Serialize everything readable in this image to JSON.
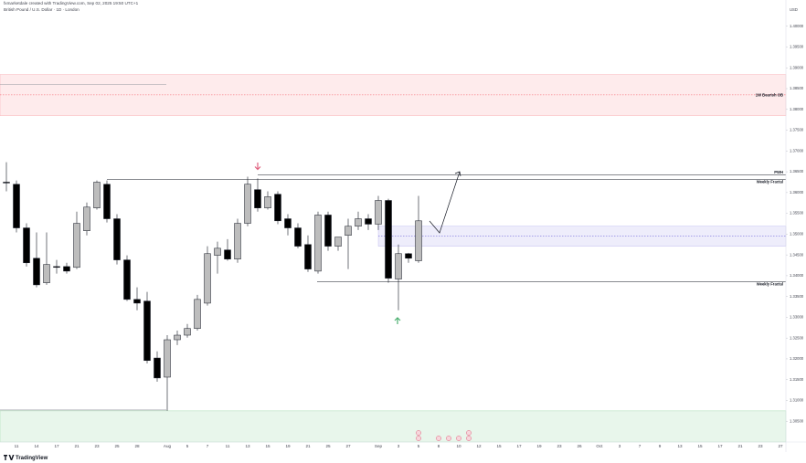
{
  "header": {
    "author_line": "fxmarketdale created with TradingView.com, Sep 02, 2025 19:50 UTC+1",
    "symbol_line": "British Pound / U.S. Dollar · 1D · London"
  },
  "chart_data": {
    "type": "candlestick",
    "currency": "USD",
    "categories": [
      null,
      "11",
      null,
      "14",
      null,
      "17",
      null,
      "21",
      null,
      "23",
      null,
      "25",
      null,
      "28",
      null,
      null,
      "Aug",
      null,
      "5",
      null,
      "7",
      null,
      "11",
      null,
      "13",
      null,
      "15",
      null,
      "19",
      null,
      "21",
      null,
      "25",
      null,
      "27",
      null,
      null,
      "Sep",
      null,
      "3",
      null,
      "5",
      null,
      "8",
      null,
      "10",
      null,
      "12",
      null,
      "15",
      null,
      "17",
      null,
      "19",
      null,
      "23",
      null,
      "26",
      null,
      "Oct",
      null,
      "3",
      null,
      "7",
      null,
      "9",
      null,
      "13",
      null,
      "15",
      null,
      "17",
      null,
      "21",
      null,
      "23",
      null,
      "27"
    ],
    "open": [
      1.3625,
      1.362,
      1.3515,
      1.3442,
      1.3383,
      1.3422,
      1.3422,
      1.342,
      1.3508,
      1.3563,
      1.362,
      1.3537,
      1.3438,
      1.3343,
      1.3339,
      1.3202,
      1.3156,
      1.3246,
      1.3257,
      1.3273,
      1.3334,
      1.3449,
      1.3462,
      1.344,
      1.3526,
      1.3607,
      1.3563,
      1.3596,
      1.3537,
      1.3515,
      1.3475,
      1.3411,
      1.3546,
      1.3471,
      1.3497,
      1.3519,
      1.3537,
      1.3524,
      1.3581,
      1.3392,
      1.3453,
      1.3436,
      null,
      null,
      null,
      null,
      null,
      null,
      null,
      null,
      null,
      null,
      null,
      null,
      null,
      null,
      null,
      null,
      null,
      null,
      null,
      null,
      null,
      null,
      null,
      null,
      null,
      null,
      null,
      null,
      null,
      null,
      null,
      null,
      null,
      null,
      null,
      null
    ],
    "high": [
      1.3673,
      1.3629,
      1.3526,
      1.3504,
      1.3504,
      1.3438,
      1.3431,
      1.3554,
      1.3576,
      1.3629,
      1.3629,
      1.3548,
      1.3449,
      1.3372,
      1.3361,
      1.3218,
      1.3257,
      1.3268,
      1.3284,
      1.3354,
      1.3471,
      1.3482,
      1.3488,
      1.3537,
      1.3638,
      1.3634,
      1.3603,
      1.3603,
      1.3548,
      1.3526,
      1.3497,
      1.3554,
      1.3554,
      1.3488,
      1.3537,
      1.3554,
      1.3548,
      1.3592,
      1.3585,
      1.3475,
      1.3455,
      1.3592,
      null,
      null,
      null,
      null,
      null,
      null,
      null,
      null,
      null,
      null,
      null,
      null,
      null,
      null,
      null,
      null,
      null,
      null,
      null,
      null,
      null,
      null,
      null,
      null,
      null,
      null,
      null,
      null,
      null,
      null,
      null,
      null,
      null,
      null,
      null,
      null
    ],
    "low": [
      1.3603,
      1.3504,
      1.3422,
      1.3372,
      1.3378,
      1.3405,
      1.3405,
      1.3416,
      1.3497,
      1.3559,
      1.3528,
      1.3427,
      1.3339,
      1.3317,
      1.3189,
      1.3145,
      1.3075,
      1.3233,
      1.3251,
      1.3268,
      1.3328,
      1.3405,
      1.3436,
      1.3431,
      1.3519,
      1.3554,
      1.3559,
      1.3524,
      1.3497,
      1.3466,
      1.3409,
      1.3405,
      1.346,
      1.346,
      1.3416,
      1.351,
      1.351,
      1.351,
      1.3383,
      1.3317,
      1.3431,
      1.3431,
      null,
      null,
      null,
      null,
      null,
      null,
      null,
      null,
      null,
      null,
      null,
      null,
      null,
      null,
      null,
      null,
      null,
      null,
      null,
      null,
      null,
      null,
      null,
      null,
      null,
      null,
      null,
      null,
      null,
      null,
      null,
      null,
      null,
      null,
      null,
      null
    ],
    "close": [
      1.3623,
      1.3515,
      1.3431,
      1.3378,
      1.3427,
      1.342,
      1.3411,
      1.3526,
      1.3565,
      1.3625,
      1.3537,
      1.3438,
      1.3343,
      1.3334,
      1.3196,
      1.3154,
      1.3246,
      1.3257,
      1.3273,
      1.3343,
      1.3453,
      1.3466,
      1.344,
      1.3526,
      1.362,
      1.3563,
      1.359,
      1.3532,
      1.3515,
      1.3471,
      1.3416,
      1.3546,
      1.3471,
      1.3493,
      1.3519,
      1.3537,
      1.3524,
      1.3581,
      1.3394,
      1.3453,
      1.3442,
      1.3532,
      null,
      null,
      null,
      null,
      null,
      null,
      null,
      null,
      null,
      null,
      null,
      null,
      null,
      null,
      null,
      null,
      null,
      null,
      null,
      null,
      null,
      null,
      null,
      null,
      null,
      null,
      null,
      null,
      null,
      null,
      null,
      null,
      null,
      null,
      null,
      null
    ],
    "up_color": "#bdbdbd",
    "down_color": "#000000",
    "grid": false,
    "ylim": [
      1.3,
      1.405
    ],
    "yticks": [
      {
        "value": 1.305,
        "label": "1.30500"
      },
      {
        "value": 1.31,
        "label": "1.31000"
      },
      {
        "value": 1.315,
        "label": "1.31500"
      },
      {
        "value": 1.32,
        "label": "1.32000"
      },
      {
        "value": 1.325,
        "label": "1.32500"
      },
      {
        "value": 1.33,
        "label": "1.33000"
      },
      {
        "value": 1.335,
        "label": "1.33500"
      },
      {
        "value": 1.34,
        "label": "1.34000"
      },
      {
        "value": 1.345,
        "label": "1.34500"
      },
      {
        "value": 1.35,
        "label": "1.35000"
      },
      {
        "value": 1.355,
        "label": "1.35500"
      },
      {
        "value": 1.36,
        "label": "1.36000"
      },
      {
        "value": 1.365,
        "label": "1.36500"
      },
      {
        "value": 1.37,
        "label": "1.37000"
      },
      {
        "value": 1.375,
        "label": "1.37500"
      },
      {
        "value": 1.38,
        "label": "1.38000"
      },
      {
        "value": 1.385,
        "label": "1.38500"
      },
      {
        "value": 1.39,
        "label": "1.39000"
      },
      {
        "value": 1.395,
        "label": "1.39500"
      },
      {
        "value": 1.4,
        "label": "1.40000"
      }
    ],
    "zones": [
      {
        "label": "1W Bearish OB",
        "top": 1.3884,
        "bottom": 1.3785,
        "mid": 1.3835,
        "color": "#f23645"
      },
      {
        "top": 1.3519,
        "bottom": 1.3471,
        "mid": 1.3495,
        "color": "#5b4fd6"
      },
      {
        "top": 1.3075,
        "bottom": 1.3,
        "color": "#22ab3c"
      }
    ],
    "levels": [
      {
        "label": "PWH",
        "value": 1.3642
      },
      {
        "label": "Weekly Fractal",
        "value": 1.3631
      },
      {
        "label": "Weekly Fractal",
        "value": 1.3385
      },
      {
        "value": 1.3077
      },
      {
        "value": 1.386
      }
    ]
  },
  "footer": {
    "brand": "TradingView"
  }
}
